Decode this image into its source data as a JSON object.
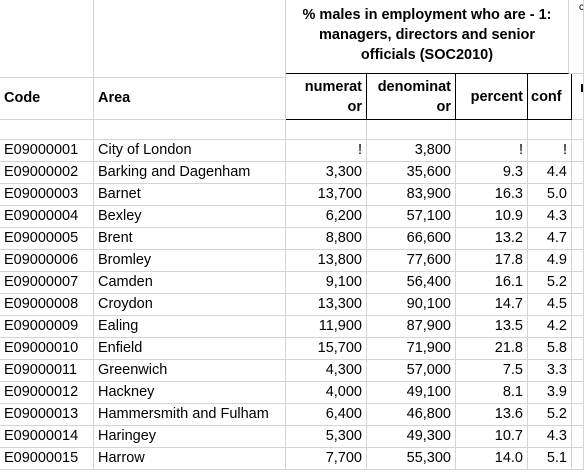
{
  "header": {
    "code": "Code",
    "area": "Area",
    "group_title": "% males in employment who are - 1: managers, directors and senior officials (SOC2010)",
    "numerator_line1": "numerat",
    "numerator_line2": "or",
    "denominator_line1": "denominat",
    "denominator_line2": "or",
    "percent": "percent",
    "conf": "conf"
  },
  "rows": [
    {
      "code": "E09000001",
      "area": "City of London",
      "num": "!",
      "den": "3,800",
      "pct": "!",
      "conf": "!"
    },
    {
      "code": "E09000002",
      "area": "Barking and Dagenham",
      "num": "3,300",
      "den": "35,600",
      "pct": "9.3",
      "conf": "4.4"
    },
    {
      "code": "E09000003",
      "area": "Barnet",
      "num": "13,700",
      "den": "83,900",
      "pct": "16.3",
      "conf": "5.0"
    },
    {
      "code": "E09000004",
      "area": "Bexley",
      "num": "6,200",
      "den": "57,100",
      "pct": "10.9",
      "conf": "4.3"
    },
    {
      "code": "E09000005",
      "area": "Brent",
      "num": "8,800",
      "den": "66,600",
      "pct": "13.2",
      "conf": "4.7"
    },
    {
      "code": "E09000006",
      "area": "Bromley",
      "num": "13,800",
      "den": "77,600",
      "pct": "17.8",
      "conf": "4.9"
    },
    {
      "code": "E09000007",
      "area": "Camden",
      "num": "9,100",
      "den": "56,400",
      "pct": "16.1",
      "conf": "5.2"
    },
    {
      "code": "E09000008",
      "area": "Croydon",
      "num": "13,300",
      "den": "90,100",
      "pct": "14.7",
      "conf": "4.5"
    },
    {
      "code": "E09000009",
      "area": "Ealing",
      "num": "11,900",
      "den": "87,900",
      "pct": "13.5",
      "conf": "4.2"
    },
    {
      "code": "E09000010",
      "area": "Enfield",
      "num": "15,700",
      "den": "71,900",
      "pct": "21.8",
      "conf": "5.8"
    },
    {
      "code": "E09000011",
      "area": "Greenwich",
      "num": "4,300",
      "den": "57,000",
      "pct": "7.5",
      "conf": "3.3"
    },
    {
      "code": "E09000012",
      "area": "Hackney",
      "num": "4,000",
      "den": "49,100",
      "pct": "8.1",
      "conf": "3.9"
    },
    {
      "code": "E09000013",
      "area": "Hammersmith and Fulham",
      "num": "6,400",
      "den": "46,800",
      "pct": "13.6",
      "conf": "5.2"
    },
    {
      "code": "E09000014",
      "area": "Haringey",
      "num": "5,300",
      "den": "49,300",
      "pct": "10.7",
      "conf": "4.3"
    },
    {
      "code": "E09000015",
      "area": "Harrow",
      "num": "7,700",
      "den": "55,300",
      "pct": "14.0",
      "conf": "5.1"
    }
  ]
}
